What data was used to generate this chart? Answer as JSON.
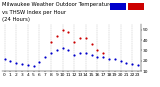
{
  "title_line1": "Milwaukee Weather Outdoor Temperature",
  "title_line2": "vs THSW Index per Hour",
  "title_line3": "(24 Hours)",
  "hours": [
    0,
    1,
    2,
    3,
    4,
    5,
    6,
    7,
    8,
    9,
    10,
    11,
    12,
    13,
    14,
    15,
    16,
    17,
    18,
    19,
    20,
    21,
    22,
    23
  ],
  "temp": [
    22,
    20,
    18,
    17,
    16,
    15,
    19,
    24,
    28,
    30,
    32,
    30,
    26,
    28,
    28,
    26,
    24,
    24,
    22,
    22,
    20,
    18,
    17,
    16
  ],
  "thsw": [
    null,
    null,
    null,
    null,
    null,
    null,
    null,
    null,
    38,
    44,
    50,
    48,
    38,
    42,
    42,
    36,
    30,
    28,
    null,
    null,
    null,
    null,
    null,
    null
  ],
  "temp_color": "#0000cc",
  "thsw_color": "#cc0000",
  "bg_color": "#ffffff",
  "grid_color": "#999999",
  "ylim": [
    10,
    55
  ],
  "ytick_values": [
    10,
    20,
    30,
    40,
    50
  ],
  "ytick_labels": [
    "10",
    "20",
    "30",
    "40",
    "50"
  ],
  "marker_size": 2.5,
  "title_fontsize": 3.8,
  "tick_fontsize": 3.2,
  "legend_blue": "#0000cc",
  "legend_red": "#cc0000"
}
